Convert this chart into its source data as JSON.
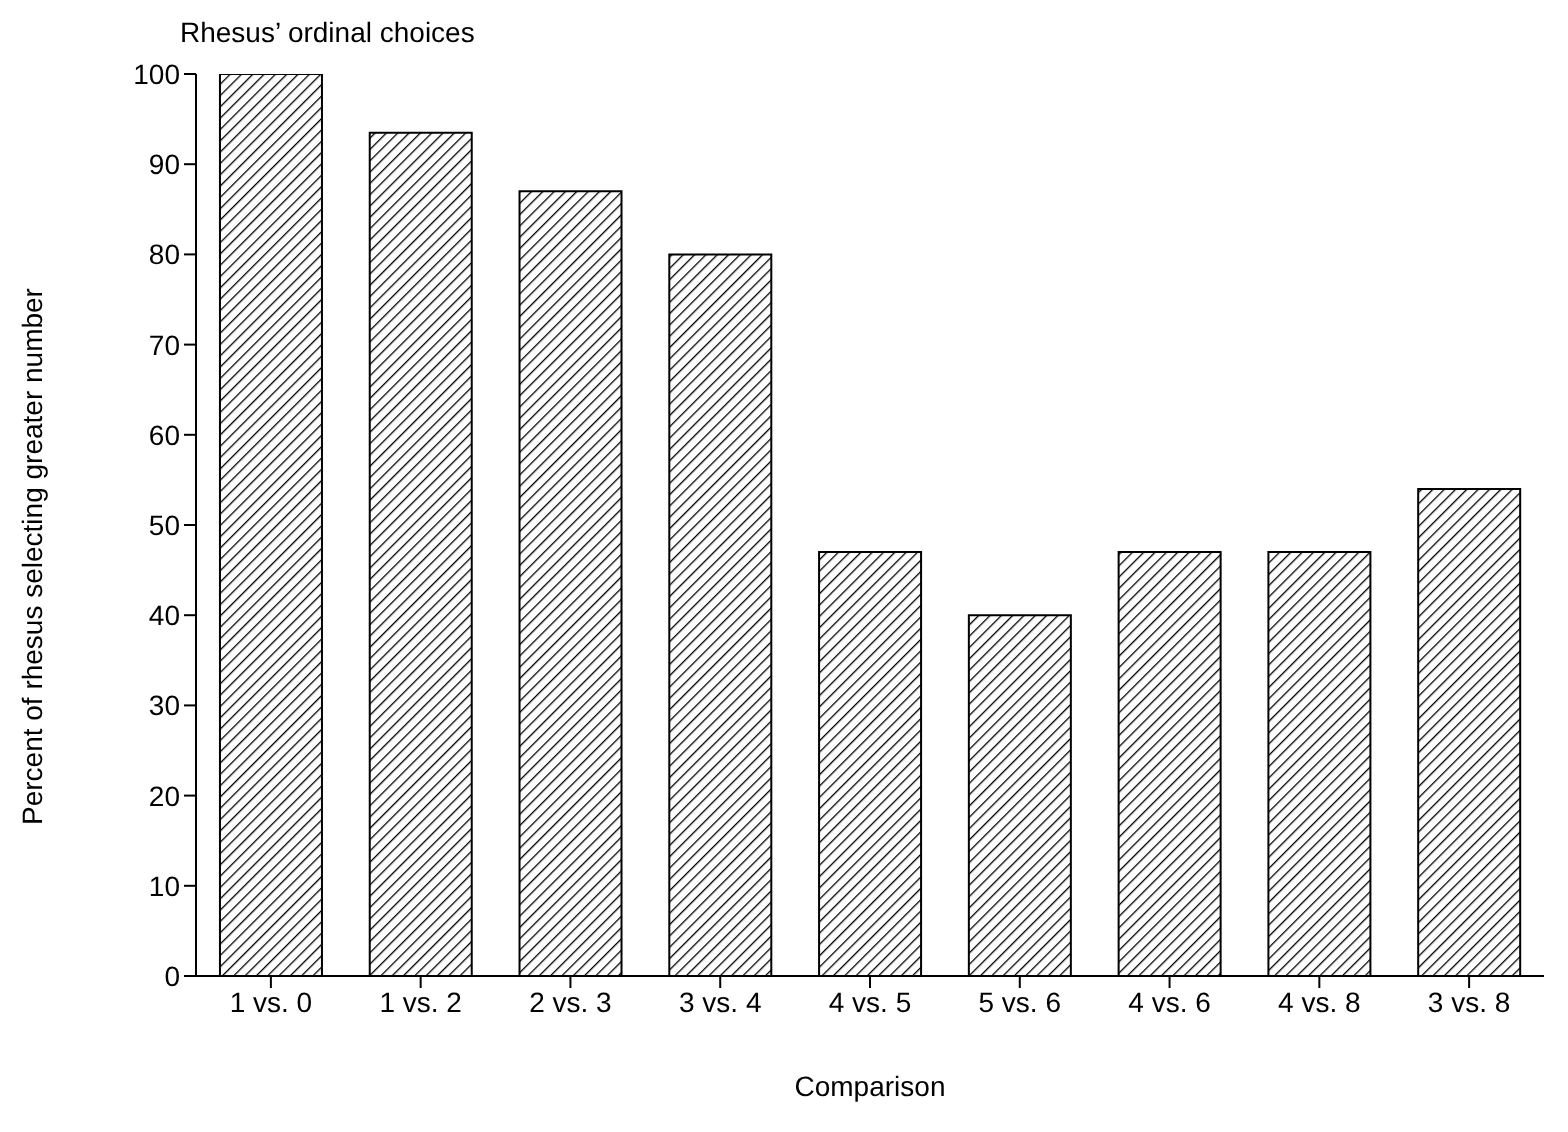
{
  "chart_data": {
    "type": "bar",
    "title": "Rhesus’ ordinal choices",
    "xlabel": "Comparison",
    "ylabel": "Percent of rhesus selecting greater number",
    "categories": [
      "1 vs. 0",
      "1 vs. 2",
      "2 vs. 3",
      "3 vs. 4",
      "4 vs. 5",
      "5 vs. 6",
      "4 vs. 6",
      "4 vs. 8",
      "3 vs. 8"
    ],
    "values": [
      100,
      93.5,
      87,
      80,
      47,
      40,
      47,
      47,
      54
    ],
    "color": "#000000",
    "ylim": [
      0,
      100
    ],
    "yticks": [
      0,
      10,
      20,
      30,
      40,
      50,
      60,
      70,
      80,
      90,
      100
    ],
    "grid": false,
    "legend": false
  }
}
